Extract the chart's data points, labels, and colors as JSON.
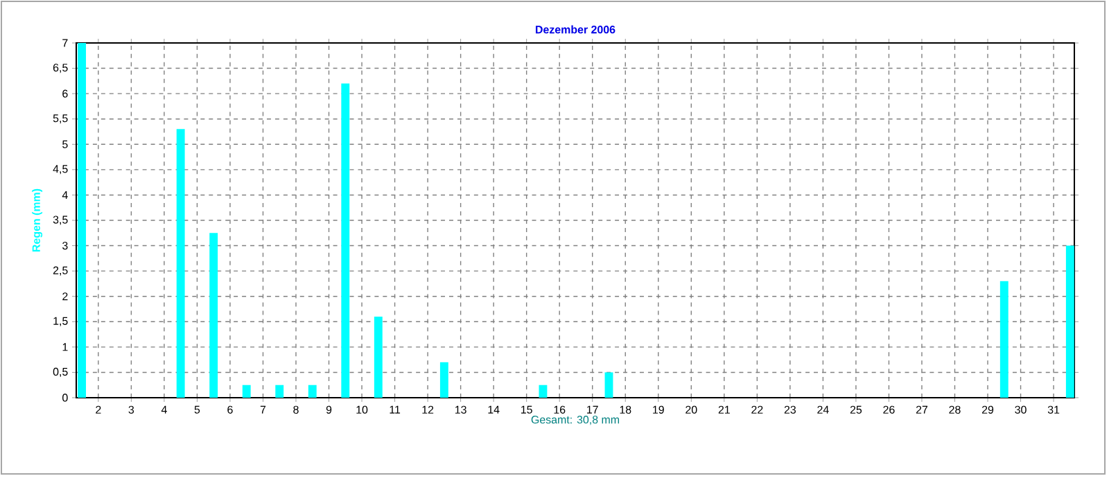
{
  "chart_data": {
    "type": "bar",
    "title": "Dezember 2006",
    "ylabel": "Regen (mm)",
    "annotations": [
      "Gesamt: 30,8 mm"
    ],
    "x": [
      1,
      2,
      3,
      4,
      5,
      6,
      7,
      8,
      9,
      10,
      11,
      12,
      13,
      14,
      15,
      16,
      17,
      18,
      19,
      20,
      21,
      22,
      23,
      24,
      25,
      26,
      27,
      28,
      29,
      30,
      31
    ],
    "values": [
      7,
      0,
      0,
      5.3,
      3.25,
      0.25,
      0.25,
      0.25,
      6.2,
      1.6,
      0,
      0.7,
      0,
      0,
      0.25,
      0,
      0.5,
      0,
      0,
      0,
      0,
      0,
      0,
      0,
      0,
      0,
      0,
      0,
      2.3,
      0,
      3.0
    ],
    "color": "#00ffff",
    "xlim": [
      0.83,
      31.13
    ],
    "xticks": [
      {
        "value": 1.5,
        "label": "2"
      },
      {
        "value": 2.5,
        "label": "3"
      },
      {
        "value": 3.5,
        "label": "4"
      },
      {
        "value": 4.5,
        "label": "5"
      },
      {
        "value": 5.5,
        "label": "6"
      },
      {
        "value": 6.5,
        "label": "7"
      },
      {
        "value": 7.5,
        "label": "8"
      },
      {
        "value": 8.5,
        "label": "9"
      },
      {
        "value": 9.5,
        "label": "10"
      },
      {
        "value": 10.5,
        "label": "11"
      },
      {
        "value": 11.5,
        "label": "12"
      },
      {
        "value": 12.5,
        "label": "13"
      },
      {
        "value": 13.5,
        "label": "14"
      },
      {
        "value": 14.5,
        "label": "15"
      },
      {
        "value": 15.5,
        "label": "16"
      },
      {
        "value": 16.5,
        "label": "17"
      },
      {
        "value": 17.5,
        "label": "18"
      },
      {
        "value": 18.5,
        "label": "19"
      },
      {
        "value": 19.5,
        "label": "20"
      },
      {
        "value": 20.5,
        "label": "21"
      },
      {
        "value": 21.5,
        "label": "22"
      },
      {
        "value": 22.5,
        "label": "23"
      },
      {
        "value": 23.5,
        "label": "24"
      },
      {
        "value": 24.5,
        "label": "25"
      },
      {
        "value": 25.5,
        "label": "26"
      },
      {
        "value": 26.5,
        "label": "27"
      },
      {
        "value": 27.5,
        "label": "28"
      },
      {
        "value": 28.5,
        "label": "29"
      },
      {
        "value": 29.5,
        "label": "30"
      },
      {
        "value": 30.5,
        "label": "31"
      }
    ],
    "ylim": [
      0,
      7
    ],
    "yticks": [
      0,
      {
        "value": 0.5,
        "label": "0,5"
      },
      1,
      {
        "value": 1.5,
        "label": "1,5"
      },
      2,
      {
        "value": 2.5,
        "label": "2,5"
      },
      3,
      {
        "value": 3.5,
        "label": "3,5"
      },
      4,
      {
        "value": 4.5,
        "label": "4,5"
      },
      5,
      {
        "value": 5.5,
        "label": "5,5"
      },
      6,
      {
        "value": 6.5,
        "label": "6,5"
      },
      7
    ],
    "grid": true
  }
}
